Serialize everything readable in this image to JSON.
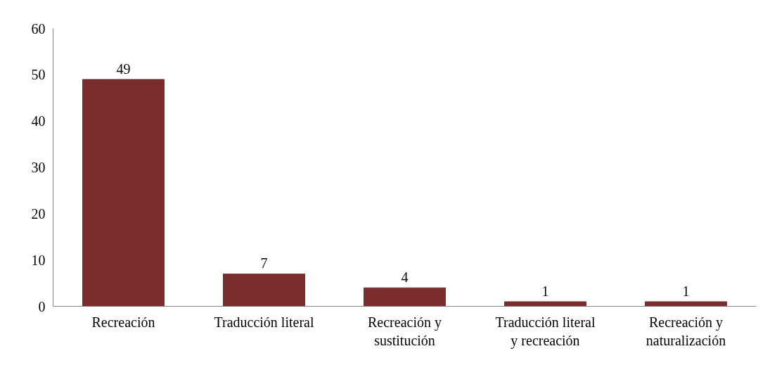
{
  "chart_data": {
    "type": "bar",
    "categories": [
      "Recreación",
      "Traducción literal",
      "Recreación y sustitución",
      "Traducción literal y recreación",
      "Recreación y naturalización"
    ],
    "values": [
      49,
      7,
      4,
      1,
      1
    ],
    "color": "#7b2d2e",
    "ylim": [
      0,
      60
    ],
    "yticks": [
      0,
      10,
      20,
      30,
      40,
      50,
      60
    ],
    "grid": false,
    "data_labels": true
  }
}
